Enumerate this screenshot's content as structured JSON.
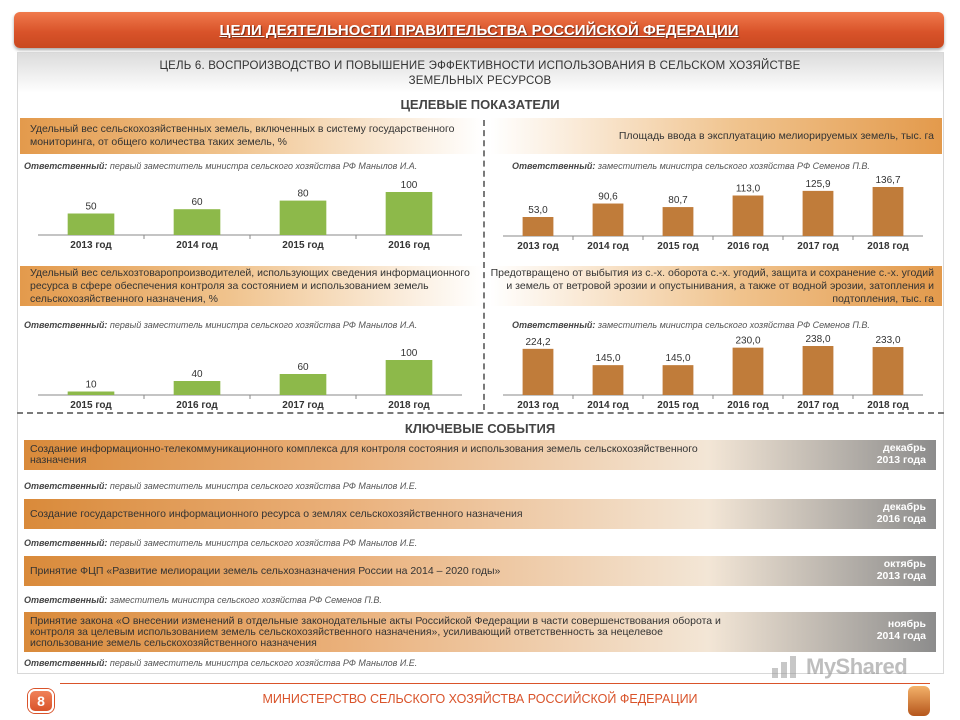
{
  "header": {
    "title": "ЦЕЛИ ДЕЯТЕЛЬНОСТИ ПРАВИТЕЛЬСТВА РОССИЙСКОЙ ФЕДЕРАЦИИ"
  },
  "goal": {
    "line1": "ЦЕЛЬ 6. ВОСПРОИЗВОДСТВО  И ПОВЫШЕНИЕ  ЭФФЕКТИВНОСТИ  ИСПОЛЬЗОВАНИЯ  В СЕЛЬСКОМ ХОЗЯЙСТВЕ",
    "line2": "ЗЕМЕЛЬНЫХ  РЕСУРСОВ"
  },
  "sections": {
    "targets": "ЦЕЛЕВЫЕ ПОКАЗАТЕЛИ",
    "events": "КЛЮЧЕВЫЕ СОБЫТИЯ"
  },
  "resp_label": "Ответственный:",
  "indicators": [
    {
      "title": "Удельный вес сельскохозяйственных земель, включенных в систему государственного мониторинга, от общего количества таких земель, %",
      "responsible": "первый заместитель министра сельского хозяйства  РФ Манылов И.А."
    },
    {
      "title": "Площадь ввода в эксплуатацию мелиорируемых земель, тыс. га",
      "responsible": "заместитель министра сельского хозяйства РФ Семенов П.В."
    },
    {
      "title": "Удельный вес сельхозтоваропроизводителей, использующих сведения информационного  ресурса в сфере обеспечения контроля за состоянием и использованием земель сельскохозяйственного назначения, %",
      "responsible": "первый заместитель министра сельского хозяйства  РФ Манылов И.А."
    },
    {
      "title": "Предотвращено от выбытия из с.-х. оборота  с.-х. угодий, защита и сохранение с.-х. угодий  и земель от ветровой эрозии и опустынивания, а также от водной эрозии, затопления и подтопления, тыс. га",
      "responsible": "заместитель министра сельского хозяйства РФ Семенов П.В."
    }
  ],
  "chart_data": [
    {
      "type": "bar",
      "categories": [
        "2013 год",
        "2014 год",
        "2015 год",
        "2016 год"
      ],
      "values": [
        50,
        60,
        80,
        100
      ],
      "value_labels": [
        "50",
        "60",
        "80",
        "100"
      ],
      "ylim": [
        0,
        100
      ],
      "color": "#8db94a"
    },
    {
      "type": "bar",
      "categories": [
        "2013 год",
        "2014 год",
        "2015 год",
        "2016 год",
        "2017 год",
        "2018 год"
      ],
      "values": [
        53.0,
        90.6,
        80.7,
        113.0,
        125.9,
        136.7
      ],
      "value_labels": [
        "53,0",
        "90,6",
        "80,7",
        "113,0",
        "125,9",
        "136,7"
      ],
      "ylim": [
        0,
        136.7
      ],
      "color": "#c07c3a"
    },
    {
      "type": "bar",
      "categories": [
        "2015 год",
        "2016 год",
        "2017 год",
        "2018 год"
      ],
      "values": [
        10,
        40,
        60,
        100
      ],
      "value_labels": [
        "10",
        "40",
        "60",
        "100"
      ],
      "ylim": [
        0,
        100
      ],
      "color": "#8db94a"
    },
    {
      "type": "bar",
      "categories": [
        "2013 год",
        "2014 год",
        "2015 год",
        "2016 год",
        "2017 год",
        "2018 год"
      ],
      "values": [
        224.2,
        145.0,
        145.0,
        230.0,
        238.0,
        233.0
      ],
      "value_labels": [
        "224,2",
        "145,0",
        "145,0",
        "230,0",
        "238,0",
        "233,0"
      ],
      "ylim": [
        0,
        238
      ],
      "color": "#c07c3a"
    }
  ],
  "events": [
    {
      "text": "Создание информационно-телекоммуникационного  комплекса для контроля состояния и использования земель сельскохозяйственного назначения",
      "date_month": "декабрь",
      "date_year": "2013 года",
      "responsible": "первый заместитель министра сельского хозяйства  РФ Манылов И.Е."
    },
    {
      "text": "Создание  государственного информационного  ресурса о землях сельскохозяйственного назначения",
      "date_month": "декабрь",
      "date_year": "2016 года",
      "responsible": "первый заместитель министра сельского хозяйства  РФ Манылов И.Е."
    },
    {
      "text": "Принятие ФЦП «Развитие мелиорации земель сельхозназначения России на 2014 – 2020 годы»",
      "date_month": "октябрь",
      "date_year": "2013 года",
      "responsible": "заместитель министра сельского хозяйства  РФ Семенов П.В."
    },
    {
      "text": "Принятие закона «О внесении изменений в отдельные законодательные акты Российской Федерации в части совершенствования оборота и контроля за целевым использованием земель сельскохозяйственного назначения», усиливающий ответственность за нецелевое использование земель сельскохозяйственного назначения",
      "date_month": "ноябрь",
      "date_year": "2014 года",
      "responsible": "первый заместитель министра сельского хозяйства  РФ Манылов И.Е."
    }
  ],
  "footer": {
    "page": "8",
    "ministry": "МИНИСТЕРСТВО СЕЛЬСКОГО ХОЗЯЙСТВА РОССИЙСКОЙ ФЕДЕРАЦИИ"
  },
  "watermark": {
    "text": "MyShared"
  }
}
